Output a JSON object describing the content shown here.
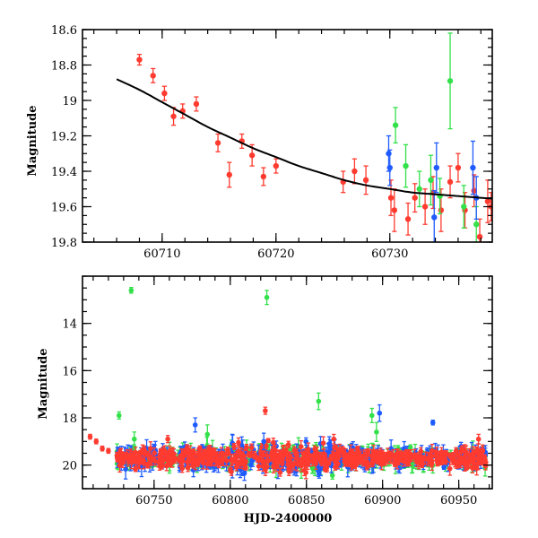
{
  "chart_data": [
    {
      "type": "scatter",
      "panel": "top",
      "title": "",
      "xlabel": "",
      "ylabel": "Magnitude",
      "xlim": [
        60703,
        60739
      ],
      "ylim": [
        19.8,
        18.6
      ],
      "y_inverted": true,
      "xticks": [
        60710,
        60720,
        60730
      ],
      "xtick_labels": [
        "60710",
        "60720",
        "60730"
      ],
      "yticks": [
        18.6,
        18.8,
        19.0,
        19.2,
        19.4,
        19.6,
        19.8
      ],
      "ytick_labels": [
        "18.6",
        "18.8",
        "19",
        "19.2",
        "19.4",
        "19.6",
        "19.8"
      ],
      "series": [
        {
          "name": "red",
          "color": "#ff3b30",
          "points": [
            {
              "x": 60708.0,
              "y": 18.77,
              "err": 0.03
            },
            {
              "x": 60709.2,
              "y": 18.86,
              "err": 0.04
            },
            {
              "x": 60710.2,
              "y": 18.96,
              "err": 0.04
            },
            {
              "x": 60711.0,
              "y": 19.09,
              "err": 0.05
            },
            {
              "x": 60711.8,
              "y": 19.06,
              "err": 0.04
            },
            {
              "x": 60713.0,
              "y": 19.02,
              "err": 0.04
            },
            {
              "x": 60714.9,
              "y": 19.24,
              "err": 0.05
            },
            {
              "x": 60715.9,
              "y": 19.42,
              "err": 0.07
            },
            {
              "x": 60717.0,
              "y": 19.23,
              "err": 0.04
            },
            {
              "x": 60717.9,
              "y": 19.31,
              "err": 0.06
            },
            {
              "x": 60718.9,
              "y": 19.43,
              "err": 0.05
            },
            {
              "x": 60720.0,
              "y": 19.37,
              "err": 0.04
            },
            {
              "x": 60725.9,
              "y": 19.46,
              "err": 0.06
            },
            {
              "x": 60726.9,
              "y": 19.4,
              "err": 0.07
            },
            {
              "x": 60727.9,
              "y": 19.45,
              "err": 0.08
            },
            {
              "x": 60730.1,
              "y": 19.55,
              "err": 0.1
            },
            {
              "x": 60730.4,
              "y": 19.62,
              "err": 0.12
            },
            {
              "x": 60731.6,
              "y": 19.67,
              "err": 0.09
            },
            {
              "x": 60732.2,
              "y": 19.55,
              "err": 0.08
            },
            {
              "x": 60733.1,
              "y": 19.6,
              "err": 0.1
            },
            {
              "x": 60733.8,
              "y": 19.52,
              "err": 0.09
            },
            {
              "x": 60734.5,
              "y": 19.62,
              "err": 0.12
            },
            {
              "x": 60735.3,
              "y": 19.46,
              "err": 0.09
            },
            {
              "x": 60736.0,
              "y": 19.38,
              "err": 0.08
            },
            {
              "x": 60736.6,
              "y": 19.62,
              "err": 0.1
            },
            {
              "x": 60737.4,
              "y": 19.51,
              "err": 0.09
            },
            {
              "x": 60737.9,
              "y": 19.77,
              "err": 0.1
            },
            {
              "x": 60738.6,
              "y": 19.57,
              "err": 0.12
            },
            {
              "x": 60738.9,
              "y": 19.6,
              "err": 0.08
            }
          ]
        },
        {
          "name": "green",
          "color": "#33e14a",
          "points": [
            {
              "x": 60730.5,
              "y": 19.14,
              "err": 0.1
            },
            {
              "x": 60731.4,
              "y": 19.37,
              "err": 0.12
            },
            {
              "x": 60732.6,
              "y": 19.5,
              "err": 0.1
            },
            {
              "x": 60733.6,
              "y": 19.45,
              "err": 0.14
            },
            {
              "x": 60734.4,
              "y": 19.54,
              "err": 0.1
            },
            {
              "x": 60735.3,
              "y": 18.89,
              "err": 0.27
            },
            {
              "x": 60736.5,
              "y": 19.6,
              "err": 0.12
            },
            {
              "x": 60737.6,
              "y": 19.7,
              "err": 0.1
            }
          ]
        },
        {
          "name": "blue",
          "color": "#1f5bff",
          "points": [
            {
              "x": 60729.9,
              "y": 19.3,
              "err": 0.1
            },
            {
              "x": 60730.0,
              "y": 19.38,
              "err": 0.1
            },
            {
              "x": 60733.9,
              "y": 19.66,
              "err": 0.15
            },
            {
              "x": 60734.1,
              "y": 19.38,
              "err": 0.14
            },
            {
              "x": 60737.3,
              "y": 19.38,
              "err": 0.15
            },
            {
              "x": 60737.6,
              "y": 19.55,
              "err": 0.12
            }
          ]
        }
      ],
      "fit_curve": {
        "x": [
          60706,
          60708,
          60710,
          60712,
          60714,
          60716,
          60718,
          60720,
          60722,
          60724,
          60726,
          60728,
          60730,
          60732,
          60734,
          60736,
          60738,
          60739
        ],
        "y": [
          18.88,
          18.94,
          19.01,
          19.08,
          19.15,
          19.21,
          19.27,
          19.32,
          19.37,
          19.41,
          19.45,
          19.48,
          19.5,
          19.52,
          19.53,
          19.54,
          19.55,
          19.555
        ]
      }
    },
    {
      "type": "scatter",
      "panel": "bottom",
      "title": "",
      "xlabel": "HJD-2400000",
      "ylabel": "Magnitude",
      "xlim": [
        60703,
        60972
      ],
      "ylim": [
        21.0,
        12.0
      ],
      "y_inverted": true,
      "xticks": [
        60750,
        60800,
        60850,
        60900,
        60950
      ],
      "xtick_labels": [
        "60750",
        "60800",
        "60850",
        "60900",
        "60950"
      ],
      "yticks": [
        14,
        16,
        18,
        20
      ],
      "ytick_labels": [
        "14",
        "16",
        "18",
        "20"
      ],
      "band": {
        "x_start": 60725,
        "x_end": 60968,
        "y_center": 19.7,
        "half_width": 0.55
      },
      "series": [
        {
          "name": "red",
          "color": "#ff3b30",
          "points": [
            {
              "x": 60708,
              "y": 18.8,
              "err": 0.1
            },
            {
              "x": 60712,
              "y": 19.0,
              "err": 0.1
            },
            {
              "x": 60716,
              "y": 19.3,
              "err": 0.1
            },
            {
              "x": 60720,
              "y": 19.4,
              "err": 0.1
            },
            {
              "x": 60740,
              "y": 19.6,
              "err": 0.15
            },
            {
              "x": 60759,
              "y": 18.9,
              "err": 0.15
            },
            {
              "x": 60823,
              "y": 17.7,
              "err": 0.15
            },
            {
              "x": 60868,
              "y": 18.9,
              "err": 0.2
            },
            {
              "x": 60963,
              "y": 18.9,
              "err": 0.2
            }
          ]
        },
        {
          "name": "green",
          "color": "#33e14a",
          "points": [
            {
              "x": 60735,
              "y": 12.6,
              "err": 0.12
            },
            {
              "x": 60824,
              "y": 12.9,
              "err": 0.3
            },
            {
              "x": 60727,
              "y": 17.9,
              "err": 0.15
            },
            {
              "x": 60858,
              "y": 17.3,
              "err": 0.35
            },
            {
              "x": 60893,
              "y": 17.9,
              "err": 0.3
            },
            {
              "x": 60896,
              "y": 18.6,
              "err": 0.4
            },
            {
              "x": 60737,
              "y": 18.9,
              "err": 0.3
            },
            {
              "x": 60785,
              "y": 18.7,
              "err": 0.4
            }
          ]
        },
        {
          "name": "blue",
          "color": "#1f5bff",
          "points": [
            {
              "x": 60777,
              "y": 18.3,
              "err": 0.3
            },
            {
              "x": 60898,
              "y": 17.8,
              "err": 0.35
            },
            {
              "x": 60933,
              "y": 18.2,
              "err": 0.1
            },
            {
              "x": 60822,
              "y": 19.0,
              "err": 0.35
            },
            {
              "x": 60865,
              "y": 19.1,
              "err": 0.3
            }
          ]
        }
      ]
    }
  ]
}
